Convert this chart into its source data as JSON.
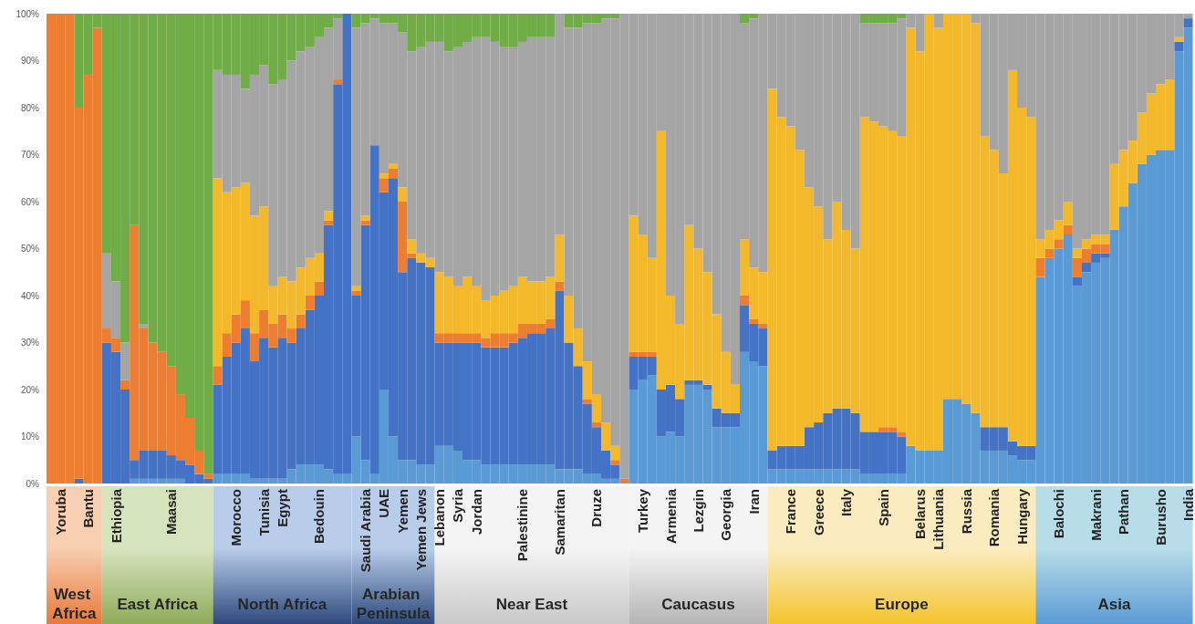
{
  "chart_data": {
    "type": "bar",
    "stacked": true,
    "categories": [
      null,
      "Yoruba",
      null,
      null,
      "Bantu",
      null,
      null,
      "Ethiopia",
      null,
      null,
      null,
      null,
      null,
      "Maasai",
      null,
      null,
      null,
      null,
      null,
      null,
      "Morocco",
      null,
      null,
      "Tunisia",
      null,
      "Egypt",
      null,
      null,
      null,
      "Bedouin",
      null,
      null,
      null,
      null,
      "Saudi Arabia",
      null,
      "UAE",
      null,
      "Yemen",
      null,
      "Yemen Jews",
      null,
      "Lebanon",
      null,
      "Syria",
      null,
      "Jordan",
      null,
      null,
      null,
      null,
      "Palestinine",
      null,
      null,
      null,
      "Samaritan",
      null,
      null,
      null,
      "Druze",
      null,
      null,
      null,
      null,
      "Turkey",
      null,
      null,
      "Armenia",
      null,
      null,
      "Lezgin",
      null,
      null,
      "Georgia",
      null,
      null,
      "Iran",
      null,
      null,
      null,
      "France",
      null,
      null,
      "Greece",
      null,
      null,
      "Italy",
      null,
      null,
      null,
      "Spain",
      null,
      null,
      null,
      "Belarus",
      null,
      "Lithuania",
      null,
      null,
      "Russia",
      null,
      null,
      "Romania",
      null,
      null,
      "Hungary",
      null,
      null,
      null,
      "Balochi",
      null,
      null,
      null,
      "Makrani",
      null,
      null,
      "Pathan",
      null,
      null,
      null,
      "Burusho",
      null,
      null,
      "India"
    ],
    "series": [
      {
        "color": "#5b9bd5",
        "values": [
          0,
          0,
          0,
          0,
          0,
          0,
          0,
          0,
          0,
          1,
          1,
          1,
          1,
          1,
          1,
          0,
          0,
          0,
          2,
          2,
          2,
          2,
          1,
          1,
          1,
          1,
          3,
          4,
          4,
          4,
          3,
          2,
          2,
          10,
          5,
          2,
          20,
          10,
          5,
          5,
          4,
          4,
          8,
          8,
          7,
          5,
          5,
          4,
          4,
          4,
          4,
          4,
          4,
          4,
          4,
          3,
          3,
          3,
          2,
          2,
          1,
          1,
          0,
          20,
          22,
          23,
          10,
          11,
          10,
          21,
          21,
          20,
          12,
          12,
          12,
          28,
          26,
          25,
          3,
          3,
          3,
          3,
          3,
          3,
          3,
          3,
          3,
          3,
          2,
          2,
          2,
          2,
          2,
          8,
          7,
          7,
          7,
          18,
          18,
          17,
          15,
          7,
          7,
          7,
          6,
          5,
          5,
          44,
          48,
          50,
          53,
          42,
          45,
          47,
          48,
          54,
          59,
          64,
          68,
          70,
          71,
          71,
          92,
          97
        ]
      },
      {
        "color": "#4472c4",
        "values": [
          0,
          0,
          0,
          1,
          0,
          0,
          30,
          28,
          20,
          4,
          6,
          6,
          6,
          5,
          4,
          4,
          2,
          1,
          19,
          25,
          28,
          31,
          25,
          30,
          28,
          30,
          27,
          29,
          33,
          36,
          52,
          83,
          98,
          30,
          50,
          70,
          42,
          55,
          40,
          43,
          43,
          42,
          22,
          22,
          23,
          25,
          25,
          25,
          25,
          25,
          26,
          27,
          28,
          28,
          29,
          38,
          27,
          22,
          15,
          10,
          6,
          3,
          0,
          7,
          5,
          4,
          10,
          10,
          8,
          1,
          1,
          1,
          4,
          3,
          3,
          10,
          8,
          8,
          4,
          5,
          5,
          5,
          9,
          10,
          12,
          13,
          13,
          12,
          9,
          9,
          9,
          9,
          8,
          0,
          0,
          0,
          0,
          0,
          0,
          0,
          0,
          5,
          5,
          5,
          3,
          3,
          3,
          0,
          0,
          0,
          0,
          2,
          2,
          2,
          1,
          0,
          0,
          0,
          0,
          0,
          0,
          0,
          2,
          2
        ]
      },
      {
        "color": "#ed7d31",
        "values": [
          100,
          100,
          100,
          79,
          87,
          97,
          3,
          3,
          2,
          50,
          26,
          23,
          21,
          19,
          14,
          10,
          5,
          1,
          4,
          5,
          6,
          6,
          6,
          6,
          5,
          5,
          3,
          3,
          3,
          3,
          1,
          1,
          0,
          1,
          1,
          0,
          3,
          2,
          15,
          1,
          0,
          0,
          2,
          2,
          2,
          2,
          2,
          2,
          3,
          3,
          2,
          3,
          2,
          2,
          2,
          2,
          0,
          0,
          1,
          1,
          0,
          1,
          1,
          1,
          1,
          1,
          0,
          0,
          0,
          0,
          0,
          0,
          0,
          0,
          0,
          2,
          1,
          1,
          0,
          0,
          0,
          0,
          0,
          0,
          0,
          0,
          0,
          0,
          0,
          0,
          1,
          1,
          1,
          0,
          0,
          0,
          0,
          0,
          0,
          0,
          0,
          0,
          0,
          0,
          0,
          0,
          0,
          4,
          2,
          2,
          2,
          4,
          3,
          2,
          2,
          0,
          0,
          0,
          0,
          0,
          0,
          0,
          0,
          0
        ]
      },
      {
        "color": "#f4b92b",
        "values": [
          0,
          0,
          0,
          0,
          0,
          0,
          0,
          0,
          0,
          0,
          0,
          0,
          0,
          0,
          0,
          0,
          0,
          0,
          40,
          30,
          27,
          25,
          25,
          22,
          8,
          8,
          10,
          10,
          8,
          6,
          2,
          0,
          0,
          1,
          1,
          0,
          1,
          1,
          3,
          3,
          2,
          2,
          13,
          12,
          10,
          12,
          10,
          8,
          8,
          9,
          10,
          10,
          9,
          9,
          9,
          10,
          10,
          8,
          8,
          6,
          6,
          3,
          0,
          29,
          25,
          20,
          55,
          19,
          16,
          33,
          28,
          24,
          20,
          13,
          6,
          12,
          11,
          11,
          77,
          70,
          68,
          63,
          51,
          46,
          37,
          44,
          38,
          35,
          67,
          66,
          64,
          63,
          63,
          89,
          85,
          93,
          90,
          82,
          82,
          83,
          83,
          62,
          59,
          54,
          79,
          72,
          70,
          4,
          4,
          4,
          5,
          2,
          2,
          2,
          2,
          14,
          12,
          9,
          11,
          13,
          14,
          15,
          1,
          0
        ]
      },
      {
        "color": "#a5a5a5",
        "values": [
          0,
          0,
          0,
          0,
          0,
          0,
          16,
          12,
          8,
          0,
          1,
          0,
          0,
          0,
          0,
          0,
          0,
          0,
          23,
          25,
          24,
          20,
          30,
          30,
          43,
          42,
          47,
          46,
          45,
          46,
          39,
          13,
          0,
          55,
          41,
          27,
          32,
          30,
          33,
          40,
          44,
          46,
          49,
          48,
          51,
          50,
          53,
          56,
          54,
          52,
          51,
          50,
          52,
          52,
          51,
          47,
          57,
          64,
          72,
          79,
          86,
          91,
          99,
          43,
          47,
          52,
          25,
          60,
          66,
          45,
          50,
          55,
          64,
          72,
          79,
          46,
          53,
          55,
          16,
          22,
          24,
          29,
          37,
          41,
          48,
          40,
          46,
          50,
          20,
          21,
          22,
          23,
          25,
          3,
          8,
          0,
          3,
          0,
          0,
          0,
          2,
          26,
          29,
          34,
          12,
          20,
          22,
          48,
          46,
          44,
          40,
          50,
          48,
          47,
          47,
          32,
          29,
          27,
          21,
          17,
          15,
          14,
          5,
          1
        ]
      },
      {
        "color": "#70ad47",
        "values": [
          0,
          0,
          0,
          20,
          13,
          3,
          51,
          57,
          70,
          45,
          66,
          70,
          72,
          75,
          81,
          86,
          93,
          98,
          12,
          13,
          13,
          16,
          13,
          11,
          15,
          14,
          10,
          8,
          7,
          5,
          3,
          1,
          0,
          3,
          2,
          1,
          2,
          2,
          4,
          8,
          7,
          6,
          6,
          8,
          7,
          6,
          5,
          5,
          6,
          7,
          7,
          6,
          5,
          5,
          5,
          0,
          3,
          3,
          2,
          2,
          1,
          1,
          0,
          0,
          0,
          0,
          0,
          0,
          0,
          0,
          0,
          0,
          0,
          0,
          0,
          2,
          1,
          0,
          0,
          0,
          0,
          0,
          0,
          0,
          0,
          0,
          0,
          0,
          2,
          2,
          2,
          2,
          1,
          0,
          0,
          0,
          0,
          0,
          0,
          0,
          0,
          0,
          0,
          0,
          0,
          0,
          0,
          0,
          0,
          0,
          0,
          0,
          0,
          0,
          0,
          0,
          0,
          0,
          0,
          0,
          0,
          0,
          0,
          0
        ]
      }
    ],
    "ylim": [
      0,
      100
    ],
    "yticks": [
      {
        "value": 0,
        "label": "0%"
      },
      {
        "value": 10,
        "label": "10%"
      },
      {
        "value": 20,
        "label": "20%"
      },
      {
        "value": 30,
        "label": "30%"
      },
      {
        "value": 40,
        "label": "40%"
      },
      {
        "value": 50,
        "label": "50%"
      },
      {
        "value": 60,
        "label": "60%"
      },
      {
        "value": 70,
        "label": "70%"
      },
      {
        "value": 80,
        "label": "80%"
      },
      {
        "value": 90,
        "label": "90%"
      },
      {
        "value": 100,
        "label": "100%"
      }
    ],
    "annotations": [
      "West Africa",
      "East Africa",
      "North Africa",
      "Arabian Peninsula",
      "Near East",
      "Caucasus",
      "Europe",
      "Asia"
    ]
  }
}
